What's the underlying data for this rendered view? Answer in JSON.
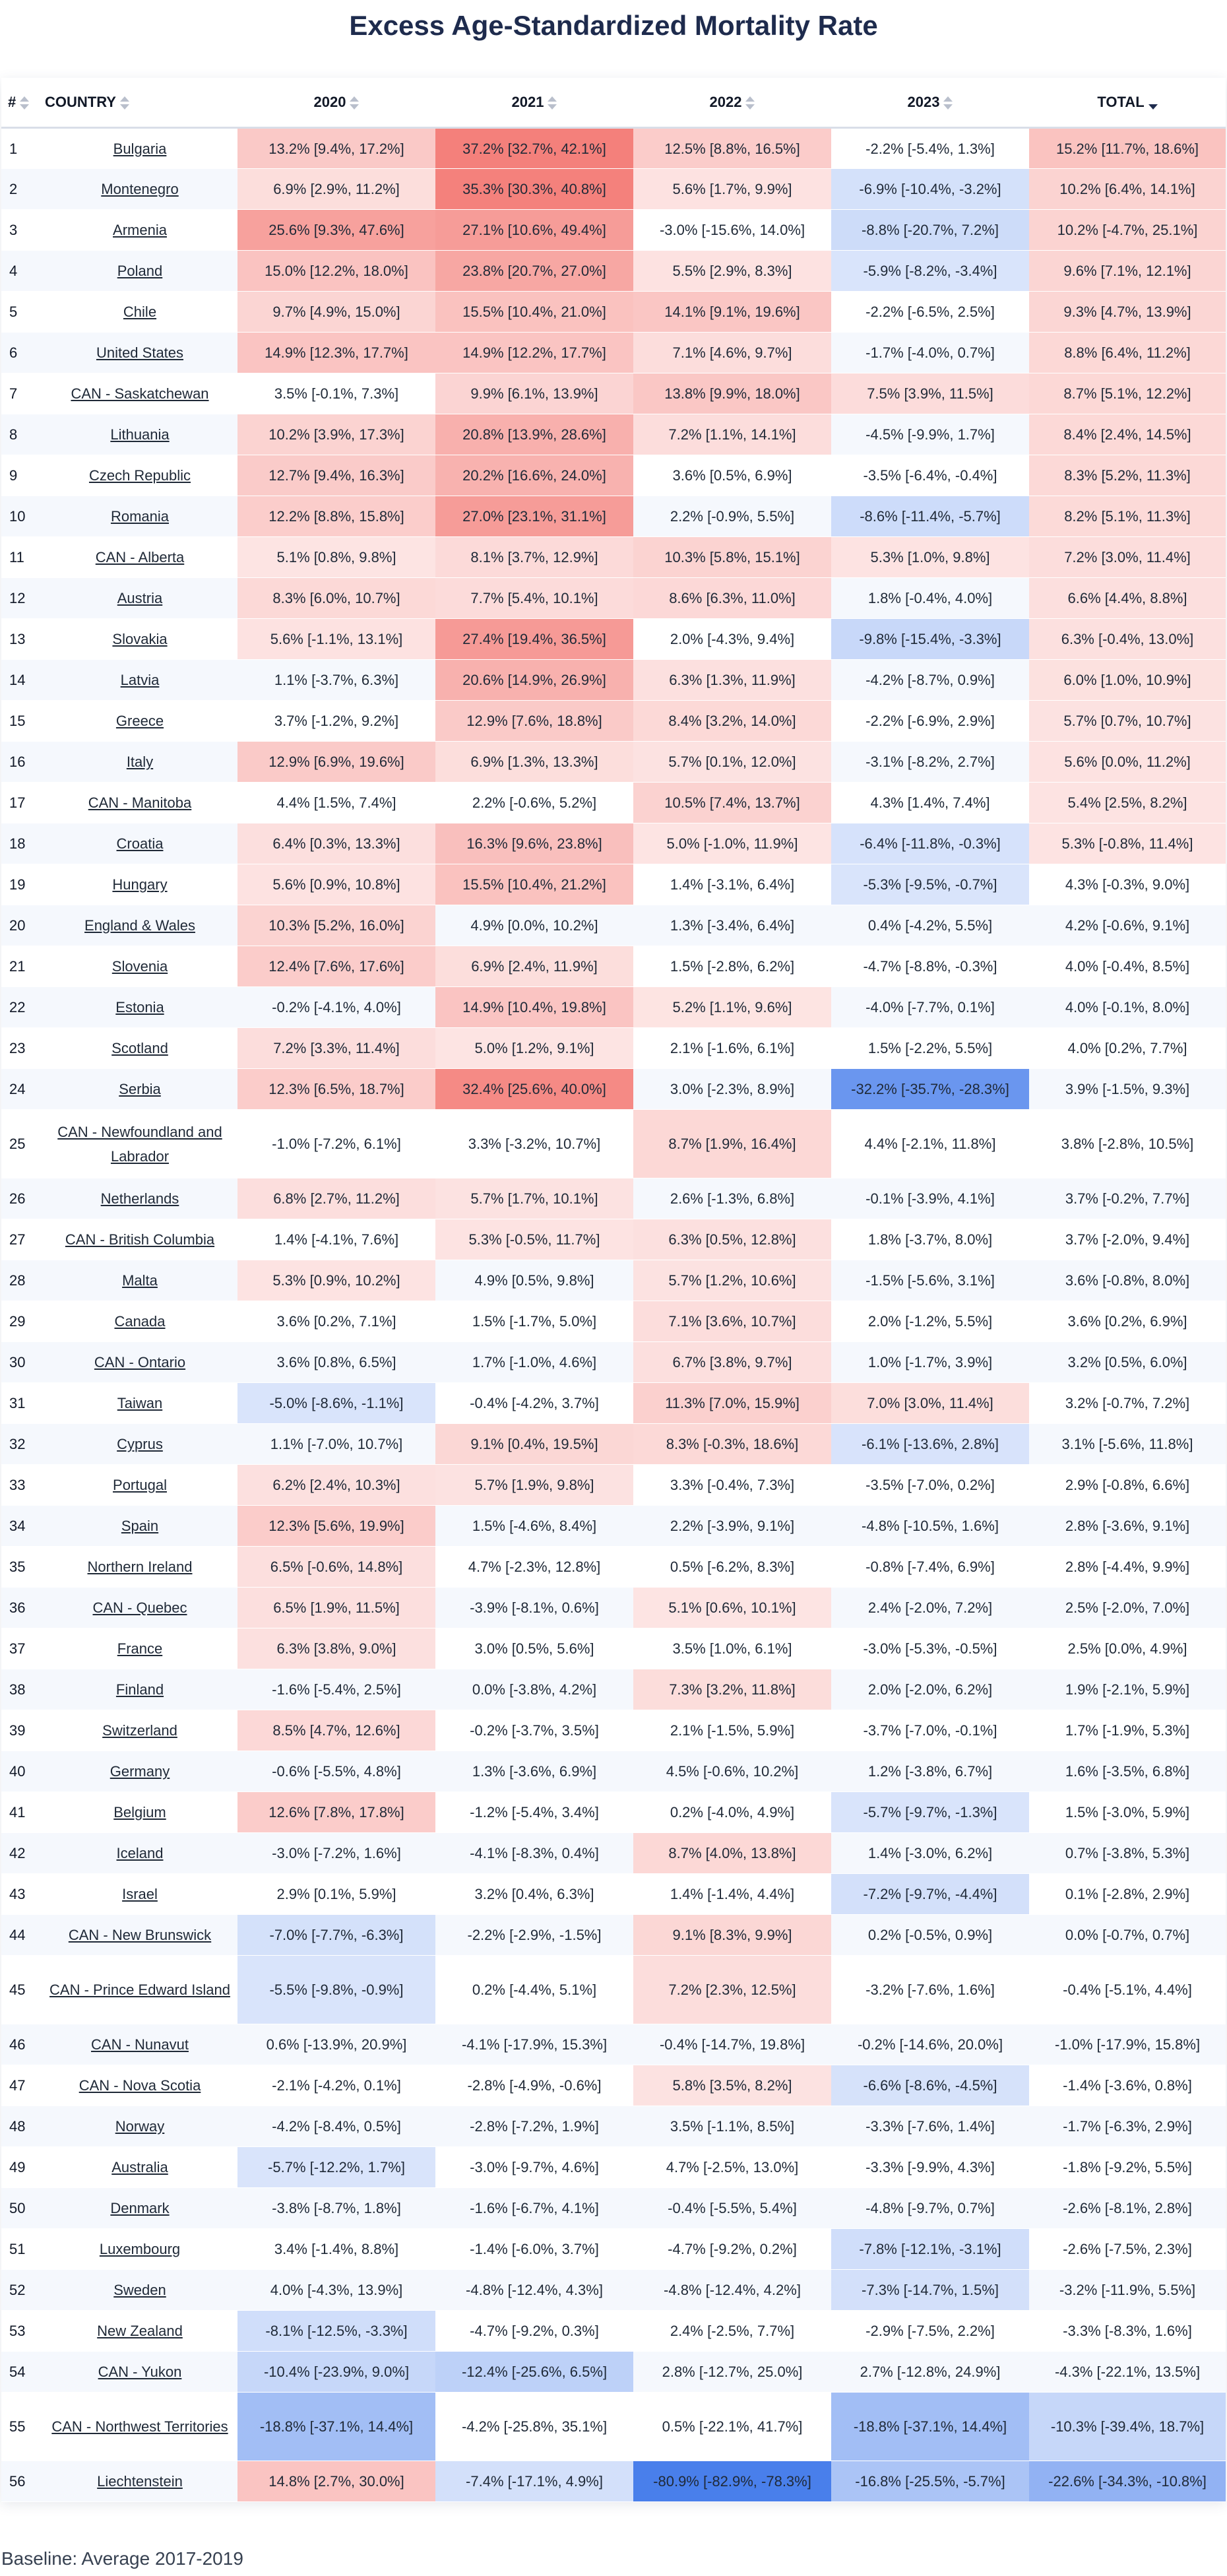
{
  "title": "Excess Age-Standardized Mortality Rate",
  "footer": "Baseline: Average 2017-2019",
  "colors": {
    "positive": "#f26a64",
    "negative": "#3f78ea",
    "neutral_odd": "#ffffff",
    "neutral_even": "#f5f8fd",
    "title": "#1e2b4d"
  },
  "columns": {
    "num": "#",
    "country": "COUNTRY",
    "y2020": "2020",
    "y2021": "2021",
    "y2022": "2022",
    "y2023": "2023",
    "total": "TOTAL"
  },
  "sort": {
    "column": "TOTAL",
    "direction": "descending"
  },
  "rows": [
    {
      "num": "1",
      "country": "Bulgaria",
      "c": [
        "13.2% [9.4%, 17.2%]",
        "37.2% [32.7%, 42.1%]",
        "12.5% [8.8%, 16.5%]",
        "-2.2% [-5.4%, 1.3%]",
        "15.2% [11.7%, 18.6%]"
      ]
    },
    {
      "num": "2",
      "country": "Montenegro",
      "c": [
        "6.9% [2.9%, 11.2%]",
        "35.3% [30.3%, 40.8%]",
        "5.6% [1.7%, 9.9%]",
        "-6.9% [-10.4%, -3.2%]",
        "10.2% [6.4%, 14.1%]"
      ]
    },
    {
      "num": "3",
      "country": "Armenia",
      "c": [
        "25.6% [9.3%, 47.6%]",
        "27.1% [10.6%, 49.4%]",
        "-3.0% [-15.6%, 14.0%]",
        "-8.8% [-20.7%, 7.2%]",
        "10.2% [-4.7%, 25.1%]"
      ]
    },
    {
      "num": "4",
      "country": "Poland",
      "c": [
        "15.0% [12.2%, 18.0%]",
        "23.8% [20.7%, 27.0%]",
        "5.5% [2.9%, 8.3%]",
        "-5.9% [-8.2%, -3.4%]",
        "9.6% [7.1%, 12.1%]"
      ]
    },
    {
      "num": "5",
      "country": "Chile",
      "c": [
        "9.7% [4.9%, 15.0%]",
        "15.5% [10.4%, 21.0%]",
        "14.1% [9.1%, 19.6%]",
        "-2.2% [-6.5%, 2.5%]",
        "9.3% [4.7%, 13.9%]"
      ]
    },
    {
      "num": "6",
      "country": "United States",
      "c": [
        "14.9% [12.3%, 17.7%]",
        "14.9% [12.2%, 17.7%]",
        "7.1% [4.6%, 9.7%]",
        "-1.7% [-4.0%, 0.7%]",
        "8.8% [6.4%, 11.2%]"
      ]
    },
    {
      "num": "7",
      "country": "CAN - Saskatchewan",
      "c": [
        "3.5% [-0.1%, 7.3%]",
        "9.9% [6.1%, 13.9%]",
        "13.8% [9.9%, 18.0%]",
        "7.5% [3.9%, 11.5%]",
        "8.7% [5.1%, 12.2%]"
      ]
    },
    {
      "num": "8",
      "country": "Lithuania",
      "c": [
        "10.2% [3.9%, 17.3%]",
        "20.8% [13.9%, 28.6%]",
        "7.2% [1.1%, 14.1%]",
        "-4.5% [-9.9%, 1.7%]",
        "8.4% [2.4%, 14.5%]"
      ]
    },
    {
      "num": "9",
      "country": "Czech Republic",
      "c": [
        "12.7% [9.4%, 16.3%]",
        "20.2% [16.6%, 24.0%]",
        "3.6% [0.5%, 6.9%]",
        "-3.5% [-6.4%, -0.4%]",
        "8.3% [5.2%, 11.3%]"
      ]
    },
    {
      "num": "10",
      "country": "Romania",
      "c": [
        "12.2% [8.8%, 15.8%]",
        "27.0% [23.1%, 31.1%]",
        "2.2% [-0.9%, 5.5%]",
        "-8.6% [-11.4%, -5.7%]",
        "8.2% [5.1%, 11.3%]"
      ]
    },
    {
      "num": "11",
      "country": "CAN - Alberta",
      "c": [
        "5.1% [0.8%, 9.8%]",
        "8.1% [3.7%, 12.9%]",
        "10.3% [5.8%, 15.1%]",
        "5.3% [1.0%, 9.8%]",
        "7.2% [3.0%, 11.4%]"
      ]
    },
    {
      "num": "12",
      "country": "Austria",
      "c": [
        "8.3% [6.0%, 10.7%]",
        "7.7% [5.4%, 10.1%]",
        "8.6% [6.3%, 11.0%]",
        "1.8% [-0.4%, 4.0%]",
        "6.6% [4.4%, 8.8%]"
      ]
    },
    {
      "num": "13",
      "country": "Slovakia",
      "c": [
        "5.6% [-1.1%, 13.1%]",
        "27.4% [19.4%, 36.5%]",
        "2.0% [-4.3%, 9.4%]",
        "-9.8% [-15.4%, -3.3%]",
        "6.3% [-0.4%, 13.0%]"
      ]
    },
    {
      "num": "14",
      "country": "Latvia",
      "c": [
        "1.1% [-3.7%, 6.3%]",
        "20.6% [14.9%, 26.9%]",
        "6.3% [1.3%, 11.9%]",
        "-4.2% [-8.7%, 0.9%]",
        "6.0% [1.0%, 10.9%]"
      ]
    },
    {
      "num": "15",
      "country": "Greece",
      "c": [
        "3.7% [-1.2%, 9.2%]",
        "12.9% [7.6%, 18.8%]",
        "8.4% [3.2%, 14.0%]",
        "-2.2% [-6.9%, 2.9%]",
        "5.7% [0.7%, 10.7%]"
      ]
    },
    {
      "num": "16",
      "country": "Italy",
      "c": [
        "12.9% [6.9%, 19.6%]",
        "6.9% [1.3%, 13.3%]",
        "5.7% [0.1%, 12.0%]",
        "-3.1% [-8.2%, 2.7%]",
        "5.6% [0.0%, 11.2%]"
      ]
    },
    {
      "num": "17",
      "country": "CAN - Manitoba",
      "c": [
        "4.4% [1.5%, 7.4%]",
        "2.2% [-0.6%, 5.2%]",
        "10.5% [7.4%, 13.7%]",
        "4.3% [1.4%, 7.4%]",
        "5.4% [2.5%, 8.2%]"
      ]
    },
    {
      "num": "18",
      "country": "Croatia",
      "c": [
        "6.4% [0.3%, 13.3%]",
        "16.3% [9.6%, 23.8%]",
        "5.0% [-1.0%, 11.9%]",
        "-6.4% [-11.8%, -0.3%]",
        "5.3% [-0.8%, 11.4%]"
      ]
    },
    {
      "num": "19",
      "country": "Hungary",
      "c": [
        "5.6% [0.9%, 10.8%]",
        "15.5% [10.4%, 21.2%]",
        "1.4% [-3.1%, 6.4%]",
        "-5.3% [-9.5%, -0.7%]",
        "4.3% [-0.3%, 9.0%]"
      ]
    },
    {
      "num": "20",
      "country": "England & Wales",
      "c": [
        "10.3% [5.2%, 16.0%]",
        "4.9% [0.0%, 10.2%]",
        "1.3% [-3.4%, 6.4%]",
        "0.4% [-4.2%, 5.5%]",
        "4.2% [-0.6%, 9.1%]"
      ]
    },
    {
      "num": "21",
      "country": "Slovenia",
      "c": [
        "12.4% [7.6%, 17.6%]",
        "6.9% [2.4%, 11.9%]",
        "1.5% [-2.8%, 6.2%]",
        "-4.7% [-8.8%, -0.3%]",
        "4.0% [-0.4%, 8.5%]"
      ]
    },
    {
      "num": "22",
      "country": "Estonia",
      "c": [
        "-0.2% [-4.1%, 4.0%]",
        "14.9% [10.4%, 19.8%]",
        "5.2% [1.1%, 9.6%]",
        "-4.0% [-7.7%, 0.1%]",
        "4.0% [-0.1%, 8.0%]"
      ]
    },
    {
      "num": "23",
      "country": "Scotland",
      "c": [
        "7.2% [3.3%, 11.4%]",
        "5.0% [1.2%, 9.1%]",
        "2.1% [-1.6%, 6.1%]",
        "1.5% [-2.2%, 5.5%]",
        "4.0% [0.2%, 7.7%]"
      ]
    },
    {
      "num": "24",
      "country": "Serbia",
      "c": [
        "12.3% [6.5%, 18.7%]",
        "32.4% [25.6%, 40.0%]",
        "3.0% [-2.3%, 8.9%]",
        "-32.2% [-35.7%, -28.3%]",
        "3.9% [-1.5%, 9.3%]"
      ]
    },
    {
      "num": "25",
      "country": "CAN - Newfoundland and Labrador",
      "tall": true,
      "c": [
        "-1.0% [-7.2%, 6.1%]",
        "3.3% [-3.2%, 10.7%]",
        "8.7% [1.9%, 16.4%]",
        "4.4% [-2.1%, 11.8%]",
        "3.8% [-2.8%, 10.5%]"
      ]
    },
    {
      "num": "26",
      "country": "Netherlands",
      "c": [
        "6.8% [2.7%, 11.2%]",
        "5.7% [1.7%, 10.1%]",
        "2.6% [-1.3%, 6.8%]",
        "-0.1% [-3.9%, 4.1%]",
        "3.7% [-0.2%, 7.7%]"
      ]
    },
    {
      "num": "27",
      "country": "CAN - British Columbia",
      "c": [
        "1.4% [-4.1%, 7.6%]",
        "5.3% [-0.5%, 11.7%]",
        "6.3% [0.5%, 12.8%]",
        "1.8% [-3.7%, 8.0%]",
        "3.7% [-2.0%, 9.4%]"
      ]
    },
    {
      "num": "28",
      "country": "Malta",
      "c": [
        "5.3% [0.9%, 10.2%]",
        "4.9% [0.5%, 9.8%]",
        "5.7% [1.2%, 10.6%]",
        "-1.5% [-5.6%, 3.1%]",
        "3.6% [-0.8%, 8.0%]"
      ]
    },
    {
      "num": "29",
      "country": "Canada",
      "c": [
        "3.6% [0.2%, 7.1%]",
        "1.5% [-1.7%, 5.0%]",
        "7.1% [3.6%, 10.7%]",
        "2.0% [-1.2%, 5.5%]",
        "3.6% [0.2%, 6.9%]"
      ]
    },
    {
      "num": "30",
      "country": "CAN - Ontario",
      "c": [
        "3.6% [0.8%, 6.5%]",
        "1.7% [-1.0%, 4.6%]",
        "6.7% [3.8%, 9.7%]",
        "1.0% [-1.7%, 3.9%]",
        "3.2% [0.5%, 6.0%]"
      ]
    },
    {
      "num": "31",
      "country": "Taiwan",
      "c": [
        "-5.0% [-8.6%, -1.1%]",
        "-0.4% [-4.2%, 3.7%]",
        "11.3% [7.0%, 15.9%]",
        "7.0% [3.0%, 11.4%]",
        "3.2% [-0.7%, 7.2%]"
      ]
    },
    {
      "num": "32",
      "country": "Cyprus",
      "c": [
        "1.1% [-7.0%, 10.7%]",
        "9.1% [0.4%, 19.5%]",
        "8.3% [-0.3%, 18.6%]",
        "-6.1% [-13.6%, 2.8%]",
        "3.1% [-5.6%, 11.8%]"
      ]
    },
    {
      "num": "33",
      "country": "Portugal",
      "c": [
        "6.2% [2.4%, 10.3%]",
        "5.7% [1.9%, 9.8%]",
        "3.3% [-0.4%, 7.3%]",
        "-3.5% [-7.0%, 0.2%]",
        "2.9% [-0.8%, 6.6%]"
      ]
    },
    {
      "num": "34",
      "country": "Spain",
      "c": [
        "12.3% [5.6%, 19.9%]",
        "1.5% [-4.6%, 8.4%]",
        "2.2% [-3.9%, 9.1%]",
        "-4.8% [-10.5%, 1.6%]",
        "2.8% [-3.6%, 9.1%]"
      ]
    },
    {
      "num": "35",
      "country": "Northern Ireland",
      "c": [
        "6.5% [-0.6%, 14.8%]",
        "4.7% [-2.3%, 12.8%]",
        "0.5% [-6.2%, 8.3%]",
        "-0.8% [-7.4%, 6.9%]",
        "2.8% [-4.4%, 9.9%]"
      ]
    },
    {
      "num": "36",
      "country": "CAN - Quebec",
      "c": [
        "6.5% [1.9%, 11.5%]",
        "-3.9% [-8.1%, 0.6%]",
        "5.1% [0.6%, 10.1%]",
        "2.4% [-2.0%, 7.2%]",
        "2.5% [-2.0%, 7.0%]"
      ]
    },
    {
      "num": "37",
      "country": "France",
      "c": [
        "6.3% [3.8%, 9.0%]",
        "3.0% [0.5%, 5.6%]",
        "3.5% [1.0%, 6.1%]",
        "-3.0% [-5.3%, -0.5%]",
        "2.5% [0.0%, 4.9%]"
      ]
    },
    {
      "num": "38",
      "country": "Finland",
      "c": [
        "-1.6% [-5.4%, 2.5%]",
        "0.0% [-3.8%, 4.2%]",
        "7.3% [3.2%, 11.8%]",
        "2.0% [-2.0%, 6.2%]",
        "1.9% [-2.1%, 5.9%]"
      ]
    },
    {
      "num": "39",
      "country": "Switzerland",
      "c": [
        "8.5% [4.7%, 12.6%]",
        "-0.2% [-3.7%, 3.5%]",
        "2.1% [-1.5%, 5.9%]",
        "-3.7% [-7.0%, -0.1%]",
        "1.7% [-1.9%, 5.3%]"
      ]
    },
    {
      "num": "40",
      "country": "Germany",
      "c": [
        "-0.6% [-5.5%, 4.8%]",
        "1.3% [-3.6%, 6.9%]",
        "4.5% [-0.6%, 10.2%]",
        "1.2% [-3.8%, 6.7%]",
        "1.6% [-3.5%, 6.8%]"
      ]
    },
    {
      "num": "41",
      "country": "Belgium",
      "c": [
        "12.6% [7.8%, 17.8%]",
        "-1.2% [-5.4%, 3.4%]",
        "0.2% [-4.0%, 4.9%]",
        "-5.7% [-9.7%, -1.3%]",
        "1.5% [-3.0%, 5.9%]"
      ]
    },
    {
      "num": "42",
      "country": "Iceland",
      "c": [
        "-3.0% [-7.2%, 1.6%]",
        "-4.1% [-8.3%, 0.4%]",
        "8.7% [4.0%, 13.8%]",
        "1.4% [-3.0%, 6.2%]",
        "0.7% [-3.8%, 5.3%]"
      ]
    },
    {
      "num": "43",
      "country": "Israel",
      "c": [
        "2.9% [0.1%, 5.9%]",
        "3.2% [0.4%, 6.3%]",
        "1.4% [-1.4%, 4.4%]",
        "-7.2% [-9.7%, -4.4%]",
        "0.1% [-2.8%, 2.9%]"
      ]
    },
    {
      "num": "44",
      "country": "CAN - New Brunswick",
      "c": [
        "-7.0% [-7.7%, -6.3%]",
        "-2.2% [-2.9%, -1.5%]",
        "9.1% [8.3%, 9.9%]",
        "0.2% [-0.5%, 0.9%]",
        "0.0% [-0.7%, 0.7%]"
      ]
    },
    {
      "num": "45",
      "country": "CAN - Prince Edward Island",
      "tall": true,
      "c": [
        "-5.5% [-9.8%, -0.9%]",
        "0.2% [-4.4%, 5.1%]",
        "7.2% [2.3%, 12.5%]",
        "-3.2% [-7.6%, 1.6%]",
        "-0.4% [-5.1%, 4.4%]"
      ]
    },
    {
      "num": "46",
      "country": "CAN - Nunavut",
      "c": [
        "0.6% [-13.9%, 20.9%]",
        "-4.1% [-17.9%, 15.3%]",
        "-0.4% [-14.7%, 19.8%]",
        "-0.2% [-14.6%, 20.0%]",
        "-1.0% [-17.9%, 15.8%]"
      ]
    },
    {
      "num": "47",
      "country": "CAN - Nova Scotia",
      "c": [
        "-2.1% [-4.2%, 0.1%]",
        "-2.8% [-4.9%, -0.6%]",
        "5.8% [3.5%, 8.2%]",
        "-6.6% [-8.6%, -4.5%]",
        "-1.4% [-3.6%, 0.8%]"
      ]
    },
    {
      "num": "48",
      "country": "Norway",
      "c": [
        "-4.2% [-8.4%, 0.5%]",
        "-2.8% [-7.2%, 1.9%]",
        "3.5% [-1.1%, 8.5%]",
        "-3.3% [-7.6%, 1.4%]",
        "-1.7% [-6.3%, 2.9%]"
      ]
    },
    {
      "num": "49",
      "country": "Australia",
      "c": [
        "-5.7% [-12.2%, 1.7%]",
        "-3.0% [-9.7%, 4.6%]",
        "4.7% [-2.5%, 13.0%]",
        "-3.3% [-9.9%, 4.3%]",
        "-1.8% [-9.2%, 5.5%]"
      ]
    },
    {
      "num": "50",
      "country": "Denmark",
      "c": [
        "-3.8% [-8.7%, 1.8%]",
        "-1.6% [-6.7%, 4.1%]",
        "-0.4% [-5.5%, 5.4%]",
        "-4.8% [-9.7%, 0.7%]",
        "-2.6% [-8.1%, 2.8%]"
      ]
    },
    {
      "num": "51",
      "country": "Luxembourg",
      "c": [
        "3.4% [-1.4%, 8.8%]",
        "-1.4% [-6.0%, 3.7%]",
        "-4.7% [-9.2%, 0.2%]",
        "-7.8% [-12.1%, -3.1%]",
        "-2.6% [-7.5%, 2.3%]"
      ]
    },
    {
      "num": "52",
      "country": "Sweden",
      "c": [
        "4.0% [-4.3%, 13.9%]",
        "-4.8% [-12.4%, 4.3%]",
        "-4.8% [-12.4%, 4.2%]",
        "-7.3% [-14.7%, 1.5%]",
        "-3.2% [-11.9%, 5.5%]"
      ]
    },
    {
      "num": "53",
      "country": "New Zealand",
      "c": [
        "-8.1% [-12.5%, -3.3%]",
        "-4.7% [-9.2%, 0.3%]",
        "2.4% [-2.5%, 7.7%]",
        "-2.9% [-7.5%, 2.2%]",
        "-3.3% [-8.3%, 1.6%]"
      ]
    },
    {
      "num": "54",
      "country": "CAN - Yukon",
      "c": [
        "-10.4% [-23.9%, 9.0%]",
        "-12.4% [-25.6%, 6.5%]",
        "2.8% [-12.7%, 25.0%]",
        "2.7% [-12.8%, 24.9%]",
        "-4.3% [-22.1%, 13.5%]"
      ]
    },
    {
      "num": "55",
      "country": "CAN - Northwest Territories",
      "tall": true,
      "c": [
        "-18.8% [-37.1%, 14.4%]",
        "-4.2% [-25.8%, 35.1%]",
        "0.5% [-22.1%, 41.7%]",
        "-18.8% [-37.1%, 14.4%]",
        "-10.3% [-39.4%, 18.7%]"
      ]
    },
    {
      "num": "56",
      "country": "Liechtenstein",
      "c": [
        "14.8% [2.7%, 30.0%]",
        "-7.4% [-17.1%, 4.9%]",
        "-80.9% [-82.9%, -78.3%]",
        "-16.8% [-25.5%, -5.7%]",
        "-22.6% [-34.3%, -10.8%]"
      ]
    }
  ]
}
